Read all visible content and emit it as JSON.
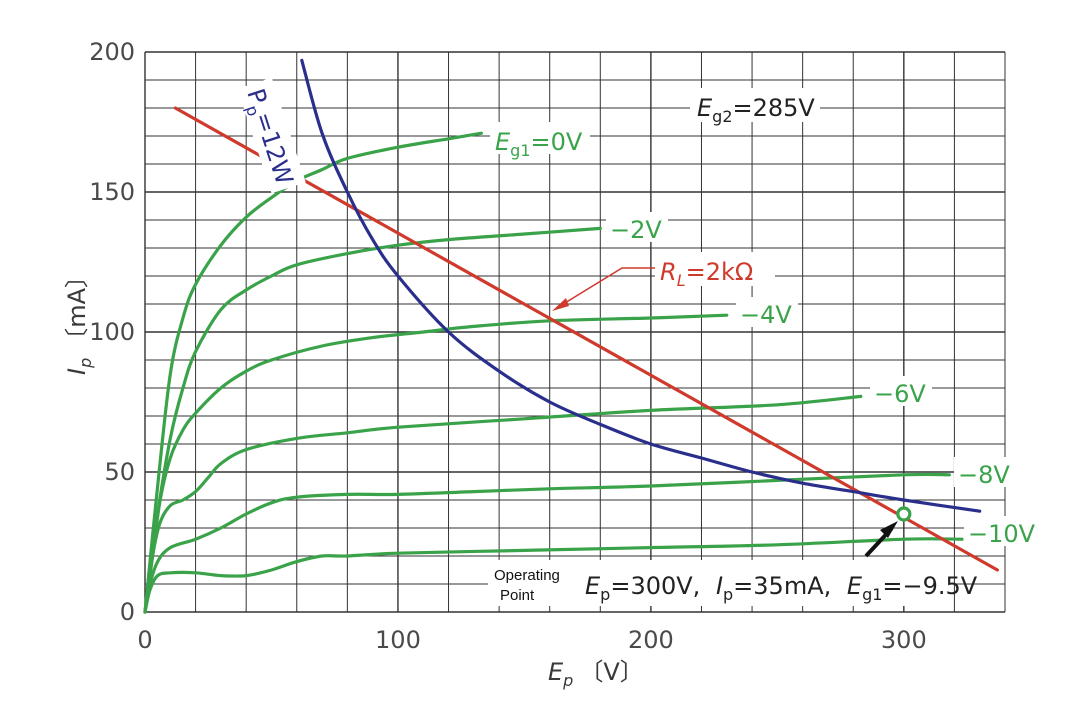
{
  "chart_data": {
    "type": "line",
    "xlabel": "E",
    "xlabel_sub": "p",
    "xlabel_unit": "〔V〕",
    "ylabel": "I",
    "ylabel_sub": "p",
    "ylabel_unit": "〔mA〕",
    "xlim": [
      0,
      340
    ],
    "ylim": [
      0,
      200
    ],
    "x_ticks": [
      0,
      100,
      200,
      300
    ],
    "y_ticks": [
      0,
      50,
      100,
      150,
      200
    ],
    "x_grid_step": 20,
    "y_grid_step": 10,
    "grid": true,
    "screen_grid_label": "E",
    "screen_grid_sub": "g2",
    "screen_grid_value": "=285V",
    "colors": {
      "grid_curves": "#3aa34a",
      "load_line": "#d03a2c",
      "power_curve": "#2a2f8c",
      "grid": "#333333"
    },
    "series": [
      {
        "kind": "grid",
        "label_prefix": "E",
        "label_sub": "g1",
        "label": "=0V",
        "points": [
          [
            0,
            0
          ],
          [
            5,
            45
          ],
          [
            10,
            85
          ],
          [
            15,
            105
          ],
          [
            20,
            117
          ],
          [
            30,
            131
          ],
          [
            40,
            141
          ],
          [
            50,
            148
          ],
          [
            60,
            154
          ],
          [
            70,
            158
          ],
          [
            80,
            162
          ],
          [
            100,
            166
          ],
          [
            120,
            169
          ],
          [
            133,
            171
          ]
        ]
      },
      {
        "kind": "grid",
        "label": "−2V",
        "points": [
          [
            0,
            0
          ],
          [
            5,
            35
          ],
          [
            10,
            62
          ],
          [
            15,
            80
          ],
          [
            20,
            93
          ],
          [
            30,
            108
          ],
          [
            40,
            115
          ],
          [
            50,
            120
          ],
          [
            60,
            124
          ],
          [
            80,
            128
          ],
          [
            100,
            131
          ],
          [
            120,
            133
          ],
          [
            150,
            135
          ],
          [
            180,
            137
          ]
        ]
      },
      {
        "kind": "grid",
        "label": "−4V",
        "points": [
          [
            0,
            0
          ],
          [
            3,
            20
          ],
          [
            6,
            40
          ],
          [
            10,
            55
          ],
          [
            15,
            65
          ],
          [
            20,
            71
          ],
          [
            30,
            80
          ],
          [
            40,
            86
          ],
          [
            50,
            90
          ],
          [
            70,
            95
          ],
          [
            90,
            98
          ],
          [
            110,
            100
          ],
          [
            130,
            102
          ],
          [
            160,
            104
          ],
          [
            200,
            105
          ],
          [
            230,
            106
          ]
        ]
      },
      {
        "kind": "grid",
        "label": "−6V",
        "points": [
          [
            0,
            0
          ],
          [
            3,
            20
          ],
          [
            6,
            32
          ],
          [
            10,
            38
          ],
          [
            15,
            40
          ],
          [
            20,
            43
          ],
          [
            25,
            48
          ],
          [
            30,
            53
          ],
          [
            40,
            58
          ],
          [
            60,
            62
          ],
          [
            80,
            64
          ],
          [
            100,
            66
          ],
          [
            150,
            69
          ],
          [
            200,
            72
          ],
          [
            250,
            74
          ],
          [
            283,
            77
          ]
        ]
      },
      {
        "kind": "grid",
        "label": "−8V",
        "points": [
          [
            0,
            0
          ],
          [
            2,
            10
          ],
          [
            5,
            18
          ],
          [
            10,
            23
          ],
          [
            20,
            26
          ],
          [
            30,
            30
          ],
          [
            40,
            35
          ],
          [
            50,
            39
          ],
          [
            60,
            41
          ],
          [
            80,
            42
          ],
          [
            100,
            42
          ],
          [
            130,
            43
          ],
          [
            160,
            44
          ],
          [
            200,
            45
          ],
          [
            250,
            47
          ],
          [
            300,
            49
          ],
          [
            318,
            49
          ]
        ]
      },
      {
        "kind": "grid",
        "label": "−10V",
        "points": [
          [
            0,
            0
          ],
          [
            2,
            8
          ],
          [
            5,
            13
          ],
          [
            10,
            14
          ],
          [
            20,
            14
          ],
          [
            30,
            13
          ],
          [
            40,
            13
          ],
          [
            50,
            15
          ],
          [
            60,
            18
          ],
          [
            70,
            20
          ],
          [
            80,
            20
          ],
          [
            100,
            21
          ],
          [
            150,
            22
          ],
          [
            200,
            23
          ],
          [
            250,
            24
          ],
          [
            300,
            26
          ],
          [
            323,
            26
          ]
        ]
      },
      {
        "kind": "load",
        "label_prefix": "R",
        "label_sub": "L",
        "label": "=2kΩ",
        "points": [
          [
            12,
            180
          ],
          [
            337,
            15
          ]
        ]
      },
      {
        "kind": "power",
        "label_prefix": "P",
        "label_sub": "p",
        "label": "=12W",
        "points": [
          [
            62,
            197
          ],
          [
            70,
            171
          ],
          [
            80,
            150
          ],
          [
            90,
            133
          ],
          [
            100,
            120
          ],
          [
            120,
            100
          ],
          [
            140,
            86
          ],
          [
            160,
            75
          ],
          [
            180,
            67
          ],
          [
            200,
            60
          ],
          [
            220,
            55
          ],
          [
            240,
            50
          ],
          [
            260,
            46
          ],
          [
            280,
            43
          ],
          [
            300,
            40
          ],
          [
            330,
            36
          ]
        ]
      }
    ],
    "operating_point": {
      "x": 300,
      "y": 35,
      "label_line1": "Operating",
      "label_line2": "Point",
      "ep_prefix": "E",
      "ep_sub": "p",
      "ep_value": "=300V,",
      "ip_prefix": "I",
      "ip_sub": "p",
      "ip_value": "=35mA,",
      "eg_prefix": "E",
      "eg_sub": "g1",
      "eg_value": "=−9.5V"
    }
  }
}
